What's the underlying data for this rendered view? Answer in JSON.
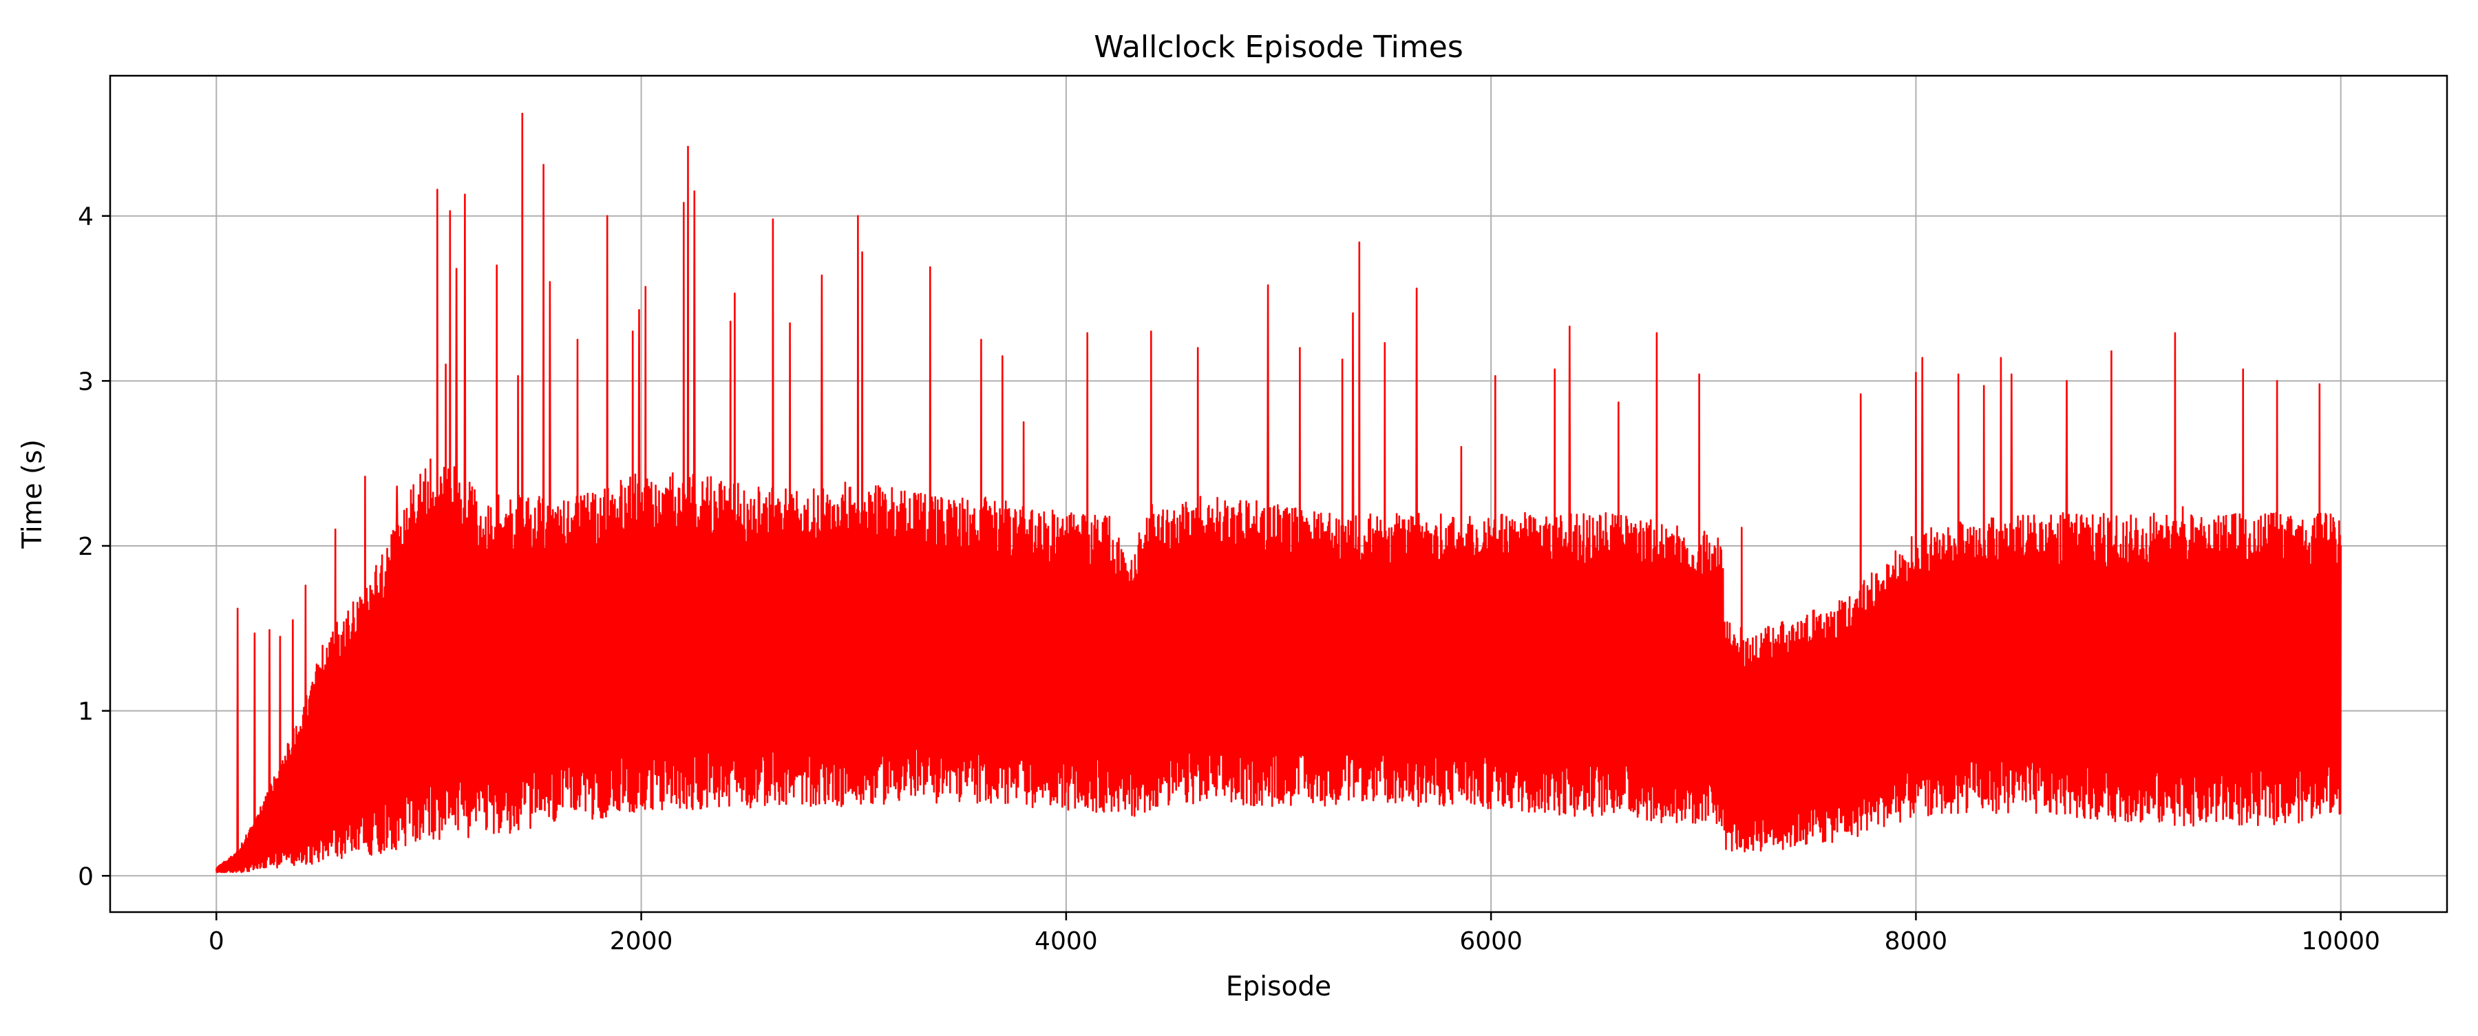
{
  "chart_data": {
    "type": "line",
    "title": "Wallclock Episode Times",
    "xlabel": "Episode",
    "ylabel": "Time (s)",
    "xlim": [
      -500,
      10500
    ],
    "ylim": [
      -0.22,
      4.85
    ],
    "xticks": [
      0,
      2000,
      4000,
      6000,
      8000,
      10000
    ],
    "xtick_labels": [
      "0",
      "2000",
      "4000",
      "6000",
      "8000",
      "10000"
    ],
    "yticks": [
      0,
      1,
      2,
      3,
      4
    ],
    "ytick_labels": [
      "0",
      "1",
      "2",
      "3",
      "4"
    ],
    "grid": true,
    "legend": "none",
    "series": [
      {
        "color": "#ff0000",
        "episodes": 10000,
        "envelope": {
          "x": [
            0,
            100,
            200,
            300,
            400,
            500,
            600,
            700,
            800,
            900,
            1000,
            1100,
            1200,
            1300,
            1400,
            1500,
            1600,
            1700,
            1800,
            1900,
            2000,
            2200,
            2400,
            2600,
            2800,
            3000,
            3200,
            3400,
            3600,
            3800,
            4000,
            4200,
            4300,
            4400,
            4600,
            4800,
            5000,
            5200,
            5400,
            5600,
            5800,
            6000,
            6200,
            6400,
            6600,
            6800,
            7000,
            7090,
            7100,
            7200,
            7400,
            7600,
            7700,
            7800,
            8000,
            8200,
            8400,
            8600,
            8800,
            9000,
            9200,
            9400,
            9600,
            9800,
            10000
          ],
          "low": [
            0.02,
            0.02,
            0.03,
            0.05,
            0.06,
            0.08,
            0.1,
            0.12,
            0.14,
            0.16,
            0.18,
            0.2,
            0.22,
            0.24,
            0.26,
            0.28,
            0.3,
            0.32,
            0.34,
            0.36,
            0.38,
            0.4,
            0.4,
            0.42,
            0.42,
            0.42,
            0.44,
            0.44,
            0.44,
            0.42,
            0.4,
            0.38,
            0.35,
            0.4,
            0.42,
            0.42,
            0.42,
            0.42,
            0.45,
            0.42,
            0.42,
            0.4,
            0.38,
            0.36,
            0.36,
            0.32,
            0.3,
            0.3,
            0.15,
            0.14,
            0.16,
            0.2,
            0.22,
            0.28,
            0.35,
            0.38,
            0.38,
            0.36,
            0.35,
            0.32,
            0.3,
            0.3,
            0.3,
            0.32,
            0.36
          ],
          "high": [
            0.05,
            0.15,
            0.4,
            0.7,
            1.0,
            1.4,
            1.6,
            1.75,
            2.0,
            2.3,
            2.55,
            2.5,
            2.4,
            2.3,
            2.35,
            2.3,
            2.3,
            2.3,
            2.35,
            2.4,
            2.45,
            2.45,
            2.4,
            2.35,
            2.35,
            2.4,
            2.35,
            2.3,
            2.3,
            2.25,
            2.2,
            2.2,
            1.95,
            2.25,
            2.3,
            2.3,
            2.25,
            2.2,
            2.2,
            2.2,
            2.2,
            2.2,
            2.2,
            2.2,
            2.2,
            2.15,
            2.1,
            2.05,
            1.55,
            1.5,
            1.55,
            1.65,
            1.75,
            1.85,
            2.1,
            2.15,
            2.2,
            2.2,
            2.2,
            2.2,
            2.25,
            2.2,
            2.2,
            2.2,
            2.2
          ]
        },
        "spikes": [
          [
            100,
            1.62
          ],
          [
            180,
            1.47
          ],
          [
            250,
            1.49
          ],
          [
            300,
            1.45
          ],
          [
            360,
            1.55
          ],
          [
            420,
            1.76
          ],
          [
            560,
            2.1
          ],
          [
            700,
            2.42
          ],
          [
            850,
            2.36
          ],
          [
            1040,
            4.16
          ],
          [
            1080,
            3.1
          ],
          [
            1100,
            4.03
          ],
          [
            1130,
            3.68
          ],
          [
            1170,
            4.13
          ],
          [
            1320,
            3.7
          ],
          [
            1420,
            3.03
          ],
          [
            1440,
            4.62
          ],
          [
            1540,
            4.31
          ],
          [
            1570,
            3.6
          ],
          [
            1700,
            3.25
          ],
          [
            1840,
            4.0
          ],
          [
            1960,
            3.3
          ],
          [
            1990,
            3.43
          ],
          [
            2020,
            3.57
          ],
          [
            2200,
            4.08
          ],
          [
            2220,
            4.42
          ],
          [
            2250,
            4.15
          ],
          [
            2420,
            3.36
          ],
          [
            2440,
            3.53
          ],
          [
            2620,
            3.98
          ],
          [
            2700,
            3.35
          ],
          [
            2850,
            3.64
          ],
          [
            3020,
            4.0
          ],
          [
            3040,
            3.78
          ],
          [
            3360,
            3.69
          ],
          [
            3600,
            3.25
          ],
          [
            3700,
            3.15
          ],
          [
            3800,
            2.75
          ],
          [
            4100,
            3.29
          ],
          [
            4400,
            3.3
          ],
          [
            4620,
            3.2
          ],
          [
            4950,
            3.58
          ],
          [
            5100,
            3.2
          ],
          [
            5300,
            3.13
          ],
          [
            5350,
            3.41
          ],
          [
            5380,
            3.84
          ],
          [
            5500,
            3.23
          ],
          [
            5650,
            3.56
          ],
          [
            5860,
            2.6
          ],
          [
            6020,
            3.03
          ],
          [
            6300,
            3.07
          ],
          [
            6370,
            3.33
          ],
          [
            6600,
            2.87
          ],
          [
            6780,
            3.29
          ],
          [
            6980,
            3.04
          ],
          [
            7180,
            2.11
          ],
          [
            7740,
            2.92
          ],
          [
            8000,
            3.05
          ],
          [
            8030,
            3.14
          ],
          [
            8200,
            3.04
          ],
          [
            8320,
            2.97
          ],
          [
            8400,
            3.14
          ],
          [
            8450,
            3.04
          ],
          [
            8710,
            3.0
          ],
          [
            8920,
            3.18
          ],
          [
            9220,
            3.29
          ],
          [
            9540,
            3.07
          ],
          [
            9700,
            3.0
          ],
          [
            9900,
            2.98
          ]
        ]
      }
    ]
  }
}
